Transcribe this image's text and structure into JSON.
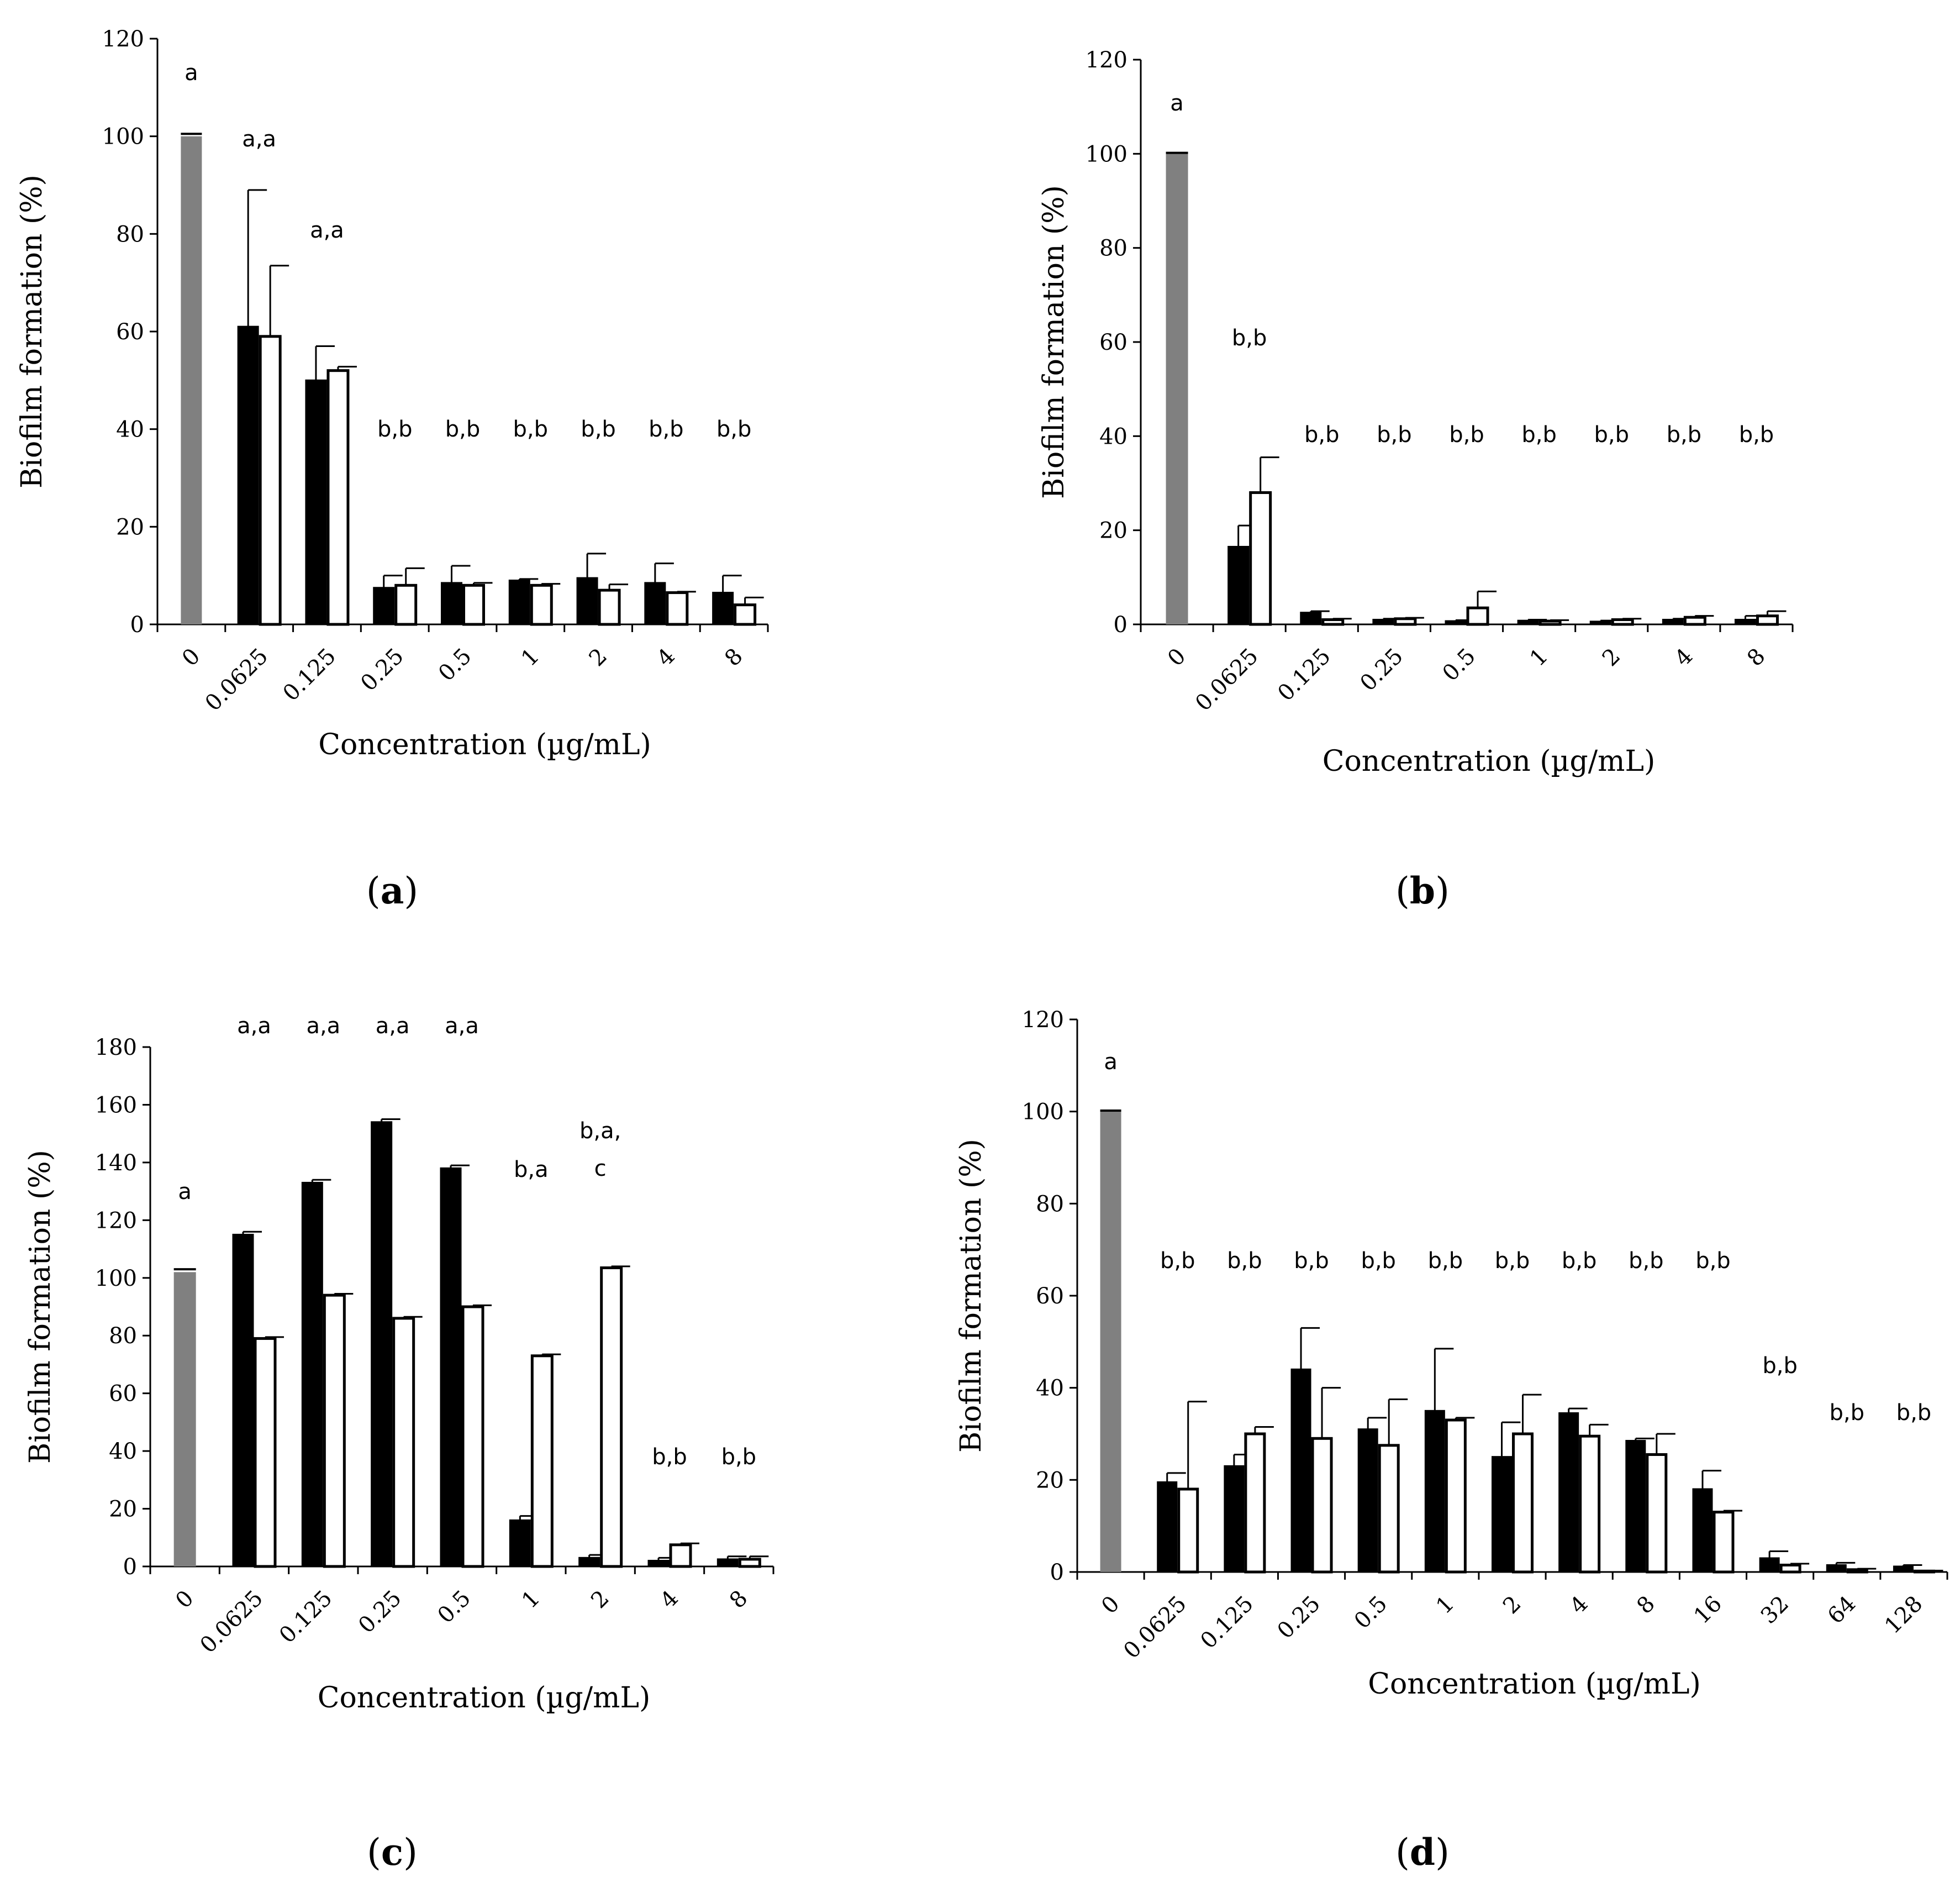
{
  "figure": {
    "colors": {
      "control": "#808080",
      "dark": "#000000",
      "light": "#ffffff",
      "axis": "#000000"
    }
  },
  "chart_data": [
    {
      "id": "a",
      "type": "bar",
      "panel_label": "a",
      "xlabel": "Concentration (µg/mL)",
      "ylabel": "Biofilm formation (%)",
      "ylim": [
        0,
        120
      ],
      "yticks": [
        0,
        20,
        40,
        60,
        80,
        100,
        120
      ],
      "categories": [
        "0",
        "0.0625",
        "0.125",
        "0.25",
        "0.5",
        "1",
        "2",
        "4",
        "8"
      ],
      "control": {
        "value": 100,
        "error": 0.5
      },
      "series": [
        {
          "name": "dark",
          "values": [
            null,
            61,
            50,
            7.5,
            8.5,
            9,
            9.5,
            8.5,
            6.5
          ],
          "errors": [
            null,
            28,
            7,
            2.5,
            3.5,
            0.3,
            5,
            4,
            3.5
          ]
        },
        {
          "name": "light",
          "values": [
            null,
            59,
            52,
            8,
            8,
            8,
            7,
            6.5,
            4
          ],
          "errors": [
            null,
            14.5,
            0.8,
            3.5,
            0.5,
            0.3,
            1.2,
            0.2,
            1.5
          ]
        }
      ],
      "annotations": [
        "a",
        "a,a",
        "a,a",
        "b,b",
        "b,b",
        "b,b",
        "b,b",
        "b,b",
        "b,b"
      ]
    },
    {
      "id": "b",
      "type": "bar",
      "panel_label": "b",
      "xlabel": "Concentration (µg/mL)",
      "ylabel": "Biofilm formation (%)",
      "ylim": [
        0,
        120
      ],
      "yticks": [
        0,
        20,
        40,
        60,
        80,
        100,
        120
      ],
      "categories": [
        "0",
        "0.0625",
        "0.125",
        "0.25",
        "0.5",
        "1",
        "2",
        "4",
        "8"
      ],
      "control": {
        "value": 100,
        "error": 0.2
      },
      "series": [
        {
          "name": "dark",
          "values": [
            null,
            16.5,
            2.5,
            1,
            0.7,
            0.8,
            0.6,
            1,
            1
          ],
          "errors": [
            null,
            4.5,
            0.3,
            0.2,
            0.2,
            0.2,
            0.2,
            0.2,
            0.8
          ]
        },
        {
          "name": "light",
          "values": [
            null,
            28,
            1,
            1.2,
            3.5,
            0.7,
            1,
            1.5,
            1.8
          ],
          "errors": [
            null,
            7.5,
            0.2,
            0.2,
            3.5,
            0.2,
            0.2,
            0.3,
            1
          ]
        }
      ],
      "annotations": [
        "a",
        "b,b",
        "b,b",
        "b,b",
        "b,b",
        "b,b",
        "b,b",
        "b,b",
        "b,b"
      ]
    },
    {
      "id": "c",
      "type": "bar",
      "panel_label": "c",
      "xlabel": "Concentration (µg/mL)",
      "ylabel": "Biofilm formation (%)",
      "ylim": [
        0,
        180
      ],
      "yticks": [
        0,
        20,
        40,
        60,
        80,
        100,
        120,
        140,
        160,
        180
      ],
      "categories": [
        "0",
        "0.0625",
        "0.125",
        "0.25",
        "0.5",
        "1",
        "2",
        "4",
        "8"
      ],
      "control": {
        "value": 102,
        "error": 1
      },
      "series": [
        {
          "name": "dark",
          "values": [
            null,
            115,
            133,
            154,
            138,
            16,
            3,
            2,
            2.5
          ],
          "errors": [
            null,
            1,
            1,
            1,
            1,
            1.5,
            1,
            1,
            1
          ]
        },
        {
          "name": "light",
          "values": [
            null,
            79,
            94,
            86,
            90,
            73,
            103.5,
            7.5,
            2.5
          ],
          "errors": [
            null,
            0.5,
            0.5,
            0.5,
            0.5,
            0.5,
            0.5,
            0.5,
            1
          ]
        }
      ],
      "annotations": [
        "a",
        "a,a",
        "a,a",
        "a,a",
        "a,a",
        "b,a",
        "b,a,|c",
        "b,b",
        "b,b"
      ]
    },
    {
      "id": "d",
      "type": "bar",
      "panel_label": "d",
      "xlabel": "Concentration (µg/mL)",
      "ylabel": "Biofilm formation (%)",
      "ylim": [
        0,
        120
      ],
      "yticks": [
        0,
        20,
        40,
        60,
        80,
        100,
        120
      ],
      "categories": [
        "0",
        "0.0625",
        "0.125",
        "0.25",
        "0.5",
        "1",
        "2",
        "4",
        "8",
        "16",
        "32",
        "64",
        "128"
      ],
      "control": {
        "value": 100,
        "error": 0.2
      },
      "series": [
        {
          "name": "dark",
          "values": [
            null,
            19.5,
            23,
            44,
            31,
            35,
            25,
            34.5,
            28.5,
            18,
            3,
            1.5,
            1.2
          ],
          "errors": [
            null,
            2,
            2.5,
            9,
            2.5,
            13.5,
            7.5,
            1,
            0.5,
            4,
            1.5,
            0.5,
            0.3
          ]
        },
        {
          "name": "light",
          "values": [
            null,
            18,
            30,
            29,
            27.5,
            33,
            30,
            29.5,
            25.5,
            13,
            1.5,
            0.5,
            0.2
          ],
          "errors": [
            null,
            19,
            1.5,
            11,
            10,
            0.5,
            8.5,
            2.5,
            4.5,
            0.3,
            0.3,
            0.2,
            0.1
          ]
        }
      ],
      "annotations": [
        "a",
        "b,b",
        "b,b",
        "b,b",
        "b,b",
        "b,b",
        "b,b",
        "b,b",
        "b,b",
        "b,b",
        "b,b",
        "b,b",
        "b,b"
      ]
    }
  ]
}
